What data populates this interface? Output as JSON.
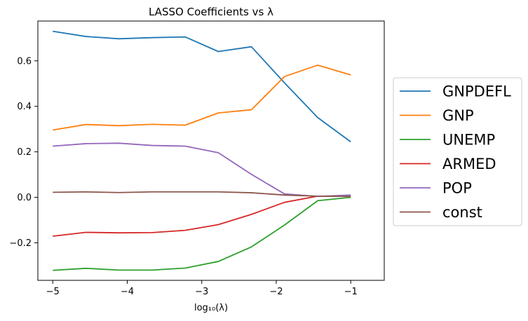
{
  "chart_data": {
    "type": "line",
    "title": "LASSO Coefficients vs λ",
    "xlabel": "log₁₀(λ)",
    "ylabel": "",
    "x": [
      -5.0,
      -4.5556,
      -4.1111,
      -3.6667,
      -3.2222,
      -2.7778,
      -2.3333,
      -1.8889,
      -1.4444,
      -1.0
    ],
    "xlim": [
      -5.2,
      -0.55
    ],
    "ylim": [
      -0.365,
      0.775
    ],
    "xticks": [
      -5,
      -4,
      -3,
      -2,
      -1
    ],
    "xtick_labels": [
      "−5",
      "−4",
      "−3",
      "−2",
      "−1"
    ],
    "yticks": [
      -0.2,
      0.0,
      0.2,
      0.4,
      0.6
    ],
    "ytick_labels": [
      "−0.2",
      "0.0",
      "0.2",
      "0.4",
      "0.6"
    ],
    "grid": false,
    "legend_position": "outside-right",
    "series": [
      {
        "name": "GNPDEFL",
        "color": "#1f77b4",
        "values": [
          0.73,
          0.707,
          0.697,
          0.702,
          0.705,
          0.641,
          0.662,
          0.503,
          0.351,
          0.244
        ]
      },
      {
        "name": "GNP",
        "color": "#ff7f0e",
        "values": [
          0.296,
          0.32,
          0.315,
          0.321,
          0.317,
          0.371,
          0.385,
          0.531,
          0.581,
          0.538
        ]
      },
      {
        "name": "UNEMP",
        "color": "#2ca02c",
        "values": [
          -0.321,
          -0.312,
          -0.32,
          -0.32,
          -0.311,
          -0.282,
          -0.218,
          -0.122,
          -0.015,
          0.0
        ]
      },
      {
        "name": "ARMED",
        "color": "#d62728",
        "values": [
          -0.171,
          -0.154,
          -0.156,
          -0.155,
          -0.145,
          -0.12,
          -0.075,
          -0.022,
          0.005,
          0.004
        ]
      },
      {
        "name": "POP",
        "color": "#9467bd",
        "values": [
          0.225,
          0.236,
          0.238,
          0.228,
          0.225,
          0.196,
          0.101,
          0.015,
          0.004,
          0.01
        ]
      },
      {
        "name": "const",
        "color": "#8c564b",
        "values": [
          0.022,
          0.024,
          0.021,
          0.024,
          0.024,
          0.024,
          0.02,
          0.01,
          0.005,
          0.004
        ]
      }
    ]
  }
}
